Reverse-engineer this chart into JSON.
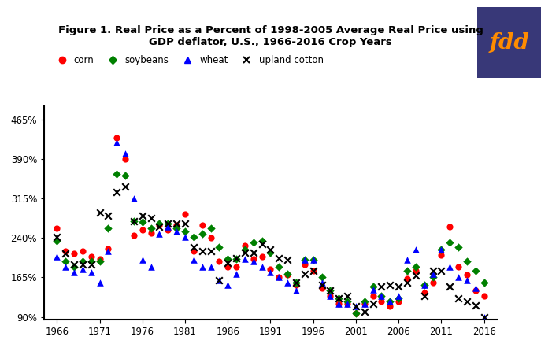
{
  "title": "Figure 1. Real Price as a Percent of 1998-2005 Average Real Price using\nGDP deflator, U.S., 1966-2016 Crop Years",
  "yticks": [
    90,
    165,
    240,
    315,
    390,
    465
  ],
  "ytick_labels": [
    "90%",
    "165%",
    "240%",
    "315%",
    "390%",
    "465%"
  ],
  "xticks": [
    1966,
    1971,
    1976,
    1981,
    1986,
    1991,
    1996,
    2001,
    2006,
    2011,
    2016
  ],
  "ylim": [
    85,
    490
  ],
  "xlim": [
    1964.5,
    2017.5
  ],
  "corn": {
    "years": [
      1966,
      1967,
      1968,
      1969,
      1970,
      1971,
      1972,
      1973,
      1974,
      1975,
      1976,
      1977,
      1978,
      1979,
      1980,
      1981,
      1982,
      1983,
      1984,
      1985,
      1986,
      1987,
      1988,
      1989,
      1990,
      1991,
      1992,
      1993,
      1994,
      1995,
      1996,
      1997,
      1998,
      1999,
      2000,
      2001,
      2002,
      2003,
      2004,
      2005,
      2006,
      2007,
      2008,
      2009,
      2010,
      2011,
      2012,
      2013,
      2014,
      2015,
      2016
    ],
    "values": [
      258,
      215,
      210,
      215,
      205,
      200,
      220,
      430,
      390,
      245,
      255,
      250,
      265,
      255,
      265,
      285,
      215,
      265,
      240,
      195,
      185,
      185,
      225,
      200,
      205,
      180,
      165,
      170,
      150,
      190,
      178,
      145,
      130,
      115,
      115,
      97,
      115,
      130,
      120,
      110,
      120,
      162,
      178,
      135,
      155,
      208,
      262,
      185,
      170,
      140,
      130
    ]
  },
  "soybeans": {
    "years": [
      1966,
      1967,
      1968,
      1969,
      1970,
      1971,
      1972,
      1973,
      1974,
      1975,
      1976,
      1977,
      1978,
      1979,
      1980,
      1981,
      1982,
      1983,
      1984,
      1985,
      1986,
      1987,
      1988,
      1989,
      1990,
      1991,
      1992,
      1993,
      1994,
      1995,
      1996,
      1997,
      1998,
      1999,
      2000,
      2001,
      2002,
      2003,
      2004,
      2005,
      2006,
      2007,
      2008,
      2009,
      2010,
      2011,
      2012,
      2013,
      2014,
      2015,
      2016
    ],
    "values": [
      235,
      195,
      185,
      195,
      195,
      195,
      258,
      362,
      358,
      272,
      270,
      258,
      268,
      268,
      258,
      252,
      242,
      248,
      258,
      222,
      200,
      200,
      218,
      232,
      235,
      212,
      185,
      172,
      155,
      198,
      198,
      165,
      140,
      125,
      120,
      97,
      120,
      148,
      130,
      120,
      125,
      178,
      185,
      150,
      165,
      218,
      232,
      222,
      195,
      178,
      155
    ]
  },
  "wheat": {
    "years": [
      1966,
      1967,
      1968,
      1969,
      1970,
      1971,
      1972,
      1973,
      1974,
      1975,
      1976,
      1977,
      1978,
      1979,
      1980,
      1981,
      1982,
      1983,
      1984,
      1985,
      1986,
      1987,
      1988,
      1989,
      1990,
      1991,
      1992,
      1993,
      1994,
      1995,
      1996,
      1997,
      1998,
      1999,
      2000,
      2001,
      2002,
      2003,
      2004,
      2005,
      2006,
      2007,
      2008,
      2009,
      2010,
      2011,
      2012,
      2013,
      2014,
      2015,
      2016
    ],
    "values": [
      205,
      185,
      175,
      180,
      175,
      155,
      215,
      422,
      400,
      315,
      198,
      185,
      248,
      262,
      252,
      242,
      198,
      185,
      185,
      160,
      150,
      172,
      200,
      195,
      185,
      175,
      165,
      155,
      140,
      198,
      198,
      155,
      130,
      115,
      115,
      110,
      115,
      142,
      130,
      120,
      130,
      198,
      218,
      150,
      172,
      218,
      185,
      165,
      160,
      145,
      90
    ]
  },
  "upland_cotton": {
    "years": [
      1966,
      1967,
      1968,
      1969,
      1970,
      1971,
      1972,
      1973,
      1974,
      1975,
      1976,
      1977,
      1978,
      1979,
      1980,
      1981,
      1982,
      1983,
      1984,
      1985,
      1986,
      1987,
      1988,
      1989,
      1990,
      1991,
      1992,
      1993,
      1994,
      1995,
      1996,
      1997,
      1998,
      1999,
      2000,
      2001,
      2002,
      2003,
      2004,
      2005,
      2006,
      2007,
      2008,
      2009,
      2010,
      2011,
      2012,
      2013,
      2014,
      2015,
      2016
    ],
    "values": [
      242,
      210,
      190,
      190,
      190,
      288,
      282,
      328,
      338,
      272,
      282,
      278,
      262,
      268,
      268,
      268,
      222,
      215,
      215,
      160,
      192,
      202,
      212,
      212,
      228,
      218,
      202,
      198,
      155,
      172,
      178,
      150,
      140,
      125,
      130,
      110,
      100,
      115,
      148,
      150,
      148,
      155,
      168,
      130,
      178,
      178,
      148,
      125,
      120,
      112,
      90
    ]
  },
  "corn_color": "#ff0000",
  "soybeans_color": "#008000",
  "wheat_color": "#0000ff",
  "cotton_color": "#000000",
  "fdd_bg": "#383878",
  "fdd_text": "#ff8c00",
  "bg_color": "#ffffff"
}
